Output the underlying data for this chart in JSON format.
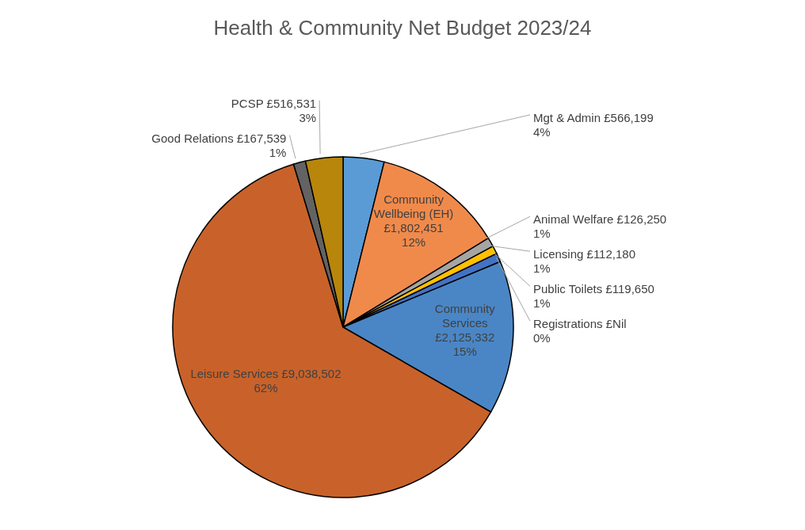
{
  "chart_data": {
    "type": "pie",
    "title": "Health & Community Net Budget 2023/24",
    "categories": [
      "Mgt & Admin",
      "Community Wellbeing (EH)",
      "Animal Welfare",
      "Licensing",
      "Public Toilets",
      "Registrations",
      "Community Services",
      "Leisure Services",
      "Good Relations",
      "PCSP"
    ],
    "values": [
      566199,
      1802451,
      126250,
      112180,
      119650,
      0,
      2125332,
      9038502,
      167539,
      516531
    ],
    "colors": [
      "#5b9bd5",
      "#f08a4b",
      "#a5a5a5",
      "#ffc000",
      "#4472c4",
      "#70ad47",
      "#4a86c5",
      "#c8622a",
      "#636363",
      "#b8860b"
    ],
    "value_labels": [
      "£566,199\n4%",
      "£1,802,451\n12%",
      "£126,250\n1%",
      "£112,180\n1%",
      "£119,650\n1%",
      "£Nil\n0%",
      "£2,125,332\n15%",
      "£9,038,502\n62%",
      "£167,539\n1%",
      "£516,531\n3%"
    ]
  }
}
